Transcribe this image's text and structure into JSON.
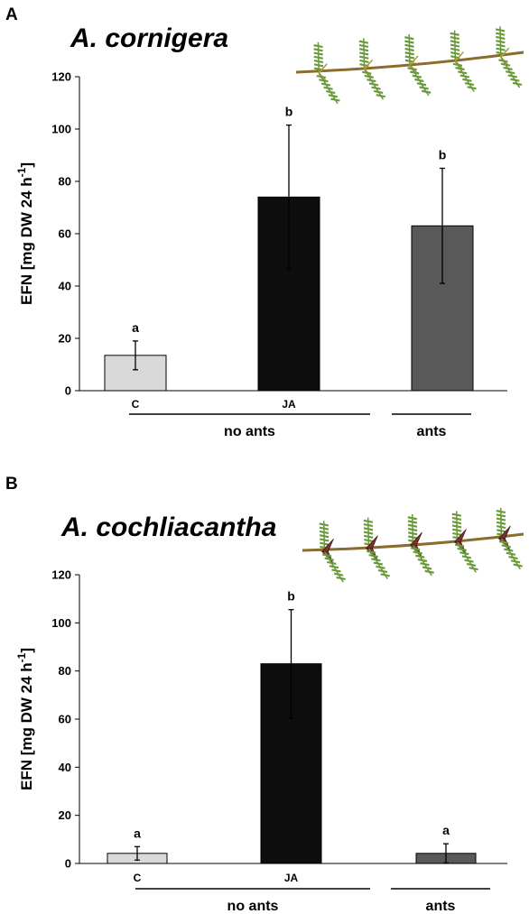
{
  "figure": {
    "panels": [
      {
        "letter": "A",
        "species": "A. cornigera"
      },
      {
        "letter": "B",
        "species": "A. cochliacantha"
      }
    ],
    "ylabel_main": "EFN [mg DW 24 h",
    "ylabel_sup": "-1",
    "ylabel_end": "]",
    "groups": [
      "no ants",
      "ants"
    ],
    "colors": {
      "C": "#d9d9d9",
      "JA": "#0d0d0d",
      "ants": "#595959",
      "leaf": "#6b9a3c",
      "thorn_b": "#7a2e2e"
    },
    "icons": [
      "acacia-cornigera-branch-icon",
      "acacia-cochliacantha-branch-icon"
    ]
  },
  "chart_data": [
    {
      "type": "bar",
      "title": "A. cornigera",
      "categories": [
        "C",
        "JA",
        ""
      ],
      "values": [
        13.5,
        74,
        63
      ],
      "errors": [
        5.5,
        27.5,
        22
      ],
      "significance": [
        "a",
        "b",
        "b"
      ],
      "groups": [
        {
          "label": "no ants",
          "categories": [
            "C",
            "JA"
          ]
        },
        {
          "label": "ants",
          "categories": [
            ""
          ]
        }
      ],
      "ylabel": "EFN [mg DW 24 h-1]",
      "ylim": [
        0,
        120
      ],
      "yticks": [
        0,
        20,
        40,
        60,
        80,
        100,
        120
      ],
      "grid": false
    },
    {
      "type": "bar",
      "title": "A. cochliacantha",
      "categories": [
        "C",
        "JA",
        ""
      ],
      "values": [
        4.2,
        83,
        4.2
      ],
      "errors": [
        2.8,
        22.5,
        4
      ],
      "significance": [
        "a",
        "b",
        "a"
      ],
      "groups": [
        {
          "label": "no ants",
          "categories": [
            "C",
            "JA"
          ]
        },
        {
          "label": "ants",
          "categories": [
            ""
          ]
        }
      ],
      "ylabel": "EFN [mg DW 24 h-1]",
      "ylim": [
        0,
        120
      ],
      "yticks": [
        0,
        20,
        40,
        60,
        80,
        100,
        120
      ],
      "grid": false
    }
  ]
}
